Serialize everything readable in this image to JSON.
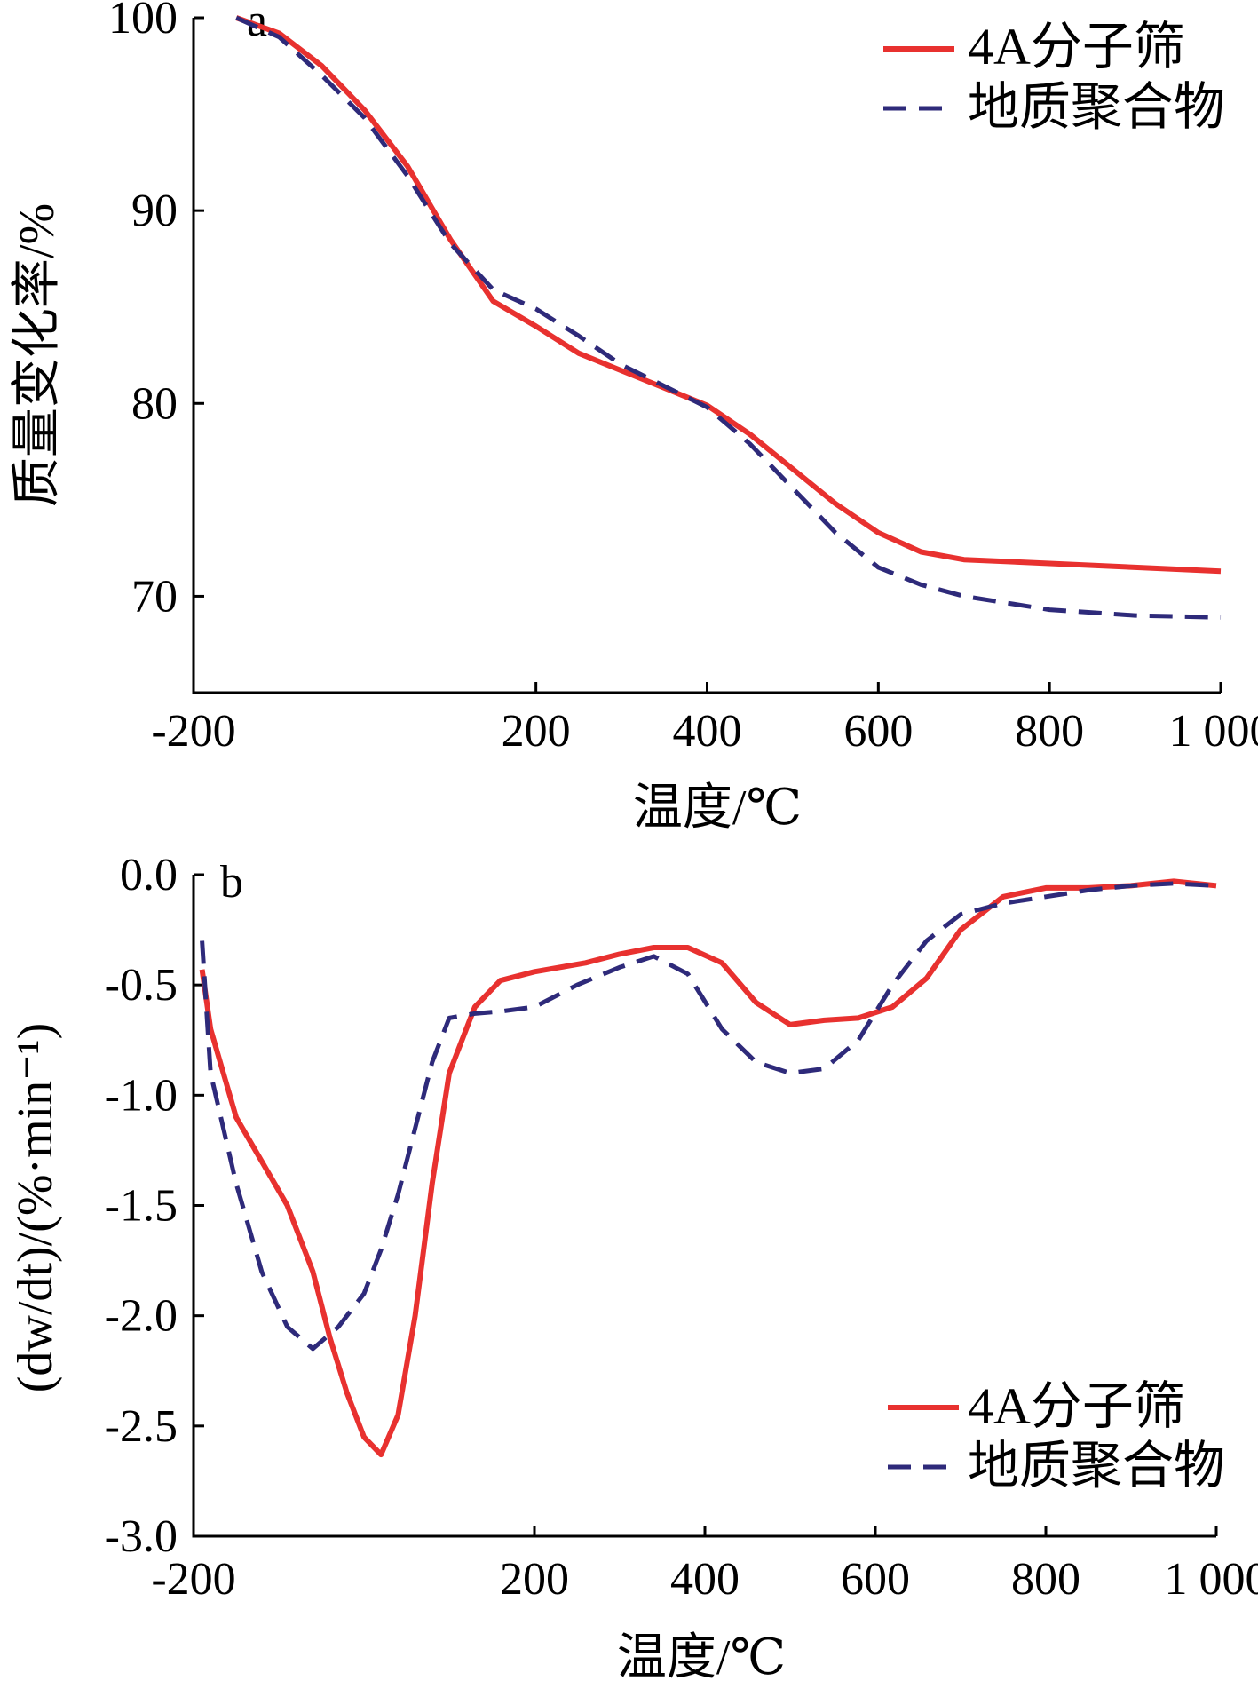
{
  "colors": {
    "molecular_sieve": "#e8312f",
    "geopolymer": "#2e2a7a"
  },
  "chart_data": [
    {
      "type": "line",
      "panel": "a",
      "xlabel": "温度/℃",
      "ylabel": "质量变化率/%",
      "xlim": [
        -200,
        1000
      ],
      "ylim": [
        65,
        100
      ],
      "xticks": [
        "-200",
        "200",
        "400",
        "600",
        "800",
        "1 000"
      ],
      "xtick_values": [
        -200,
        200,
        400,
        600,
        800,
        1000
      ],
      "yticks": [
        "70",
        "80",
        "90",
        "100"
      ],
      "ytick_values": [
        70,
        80,
        90,
        100
      ],
      "legend": {
        "placement": "top-right"
      },
      "series": [
        {
          "name": "4A分子筛",
          "style": "solid",
          "x": [
            -150,
            -100,
            -50,
            0,
            50,
            100,
            150,
            200,
            250,
            300,
            350,
            400,
            450,
            500,
            550,
            600,
            650,
            700,
            800,
            900,
            1000
          ],
          "y": [
            100,
            99.2,
            97.5,
            95.2,
            92.3,
            88.5,
            85.3,
            84.0,
            82.6,
            81.7,
            80.8,
            79.9,
            78.4,
            76.6,
            74.8,
            73.3,
            72.3,
            71.9,
            71.7,
            71.5,
            71.3
          ]
        },
        {
          "name": "地质聚合物",
          "style": "dashed",
          "x": [
            -150,
            -100,
            -50,
            0,
            50,
            100,
            150,
            200,
            250,
            300,
            350,
            400,
            450,
            500,
            550,
            600,
            650,
            700,
            800,
            900,
            1000
          ],
          "y": [
            100,
            99.0,
            97.0,
            94.8,
            91.8,
            88.3,
            85.9,
            84.9,
            83.5,
            82.0,
            80.9,
            79.8,
            77.9,
            75.6,
            73.3,
            71.5,
            70.6,
            70.0,
            69.3,
            69.0,
            68.9
          ]
        }
      ]
    },
    {
      "type": "line",
      "panel": "b",
      "xlabel": "温度/℃",
      "ylabel": "(dw/dt)/(%·min⁻¹)",
      "xlim": [
        -200,
        1000
      ],
      "ylim": [
        -3.0,
        0.0
      ],
      "xticks": [
        "-200",
        "200",
        "400",
        "600",
        "800",
        "1 000"
      ],
      "xtick_values": [
        -200,
        200,
        400,
        600,
        800,
        1000
      ],
      "yticks": [
        "0.0",
        "-0.5",
        "-1.0",
        "-1.5",
        "-2.0",
        "-2.5",
        "-3.0"
      ],
      "ytick_values": [
        0.0,
        -0.5,
        -1.0,
        -1.5,
        -2.0,
        -2.5,
        -3.0
      ],
      "legend": {
        "placement": "bottom-right"
      },
      "series": [
        {
          "name": "4A分子筛",
          "style": "solid",
          "x": [
            -190,
            -180,
            -150,
            -120,
            -90,
            -60,
            -40,
            -20,
            0,
            20,
            40,
            60,
            80,
            100,
            130,
            160,
            200,
            230,
            260,
            300,
            340,
            380,
            420,
            460,
            500,
            540,
            580,
            620,
            660,
            700,
            750,
            800,
            850,
            900,
            950,
            1000
          ],
          "y": [
            -0.43,
            -0.7,
            -1.1,
            -1.3,
            -1.5,
            -1.8,
            -2.1,
            -2.35,
            -2.55,
            -2.63,
            -2.45,
            -2.0,
            -1.4,
            -0.9,
            -0.6,
            -0.48,
            -0.44,
            -0.42,
            -0.4,
            -0.36,
            -0.33,
            -0.33,
            -0.4,
            -0.58,
            -0.68,
            -0.66,
            -0.65,
            -0.6,
            -0.47,
            -0.25,
            -0.1,
            -0.06,
            -0.06,
            -0.05,
            -0.03,
            -0.05
          ]
        },
        {
          "name": "地质聚合物",
          "style": "dashed",
          "x": [
            -190,
            -180,
            -150,
            -120,
            -90,
            -60,
            -30,
            0,
            20,
            40,
            60,
            80,
            100,
            130,
            160,
            200,
            250,
            300,
            340,
            380,
            420,
            460,
            500,
            540,
            580,
            620,
            660,
            700,
            750,
            800,
            850,
            900,
            950,
            1000
          ],
          "y": [
            -0.3,
            -0.9,
            -1.4,
            -1.8,
            -2.05,
            -2.15,
            -2.05,
            -1.9,
            -1.7,
            -1.45,
            -1.15,
            -0.85,
            -0.65,
            -0.63,
            -0.62,
            -0.6,
            -0.5,
            -0.42,
            -0.37,
            -0.45,
            -0.7,
            -0.85,
            -0.9,
            -0.88,
            -0.75,
            -0.5,
            -0.3,
            -0.18,
            -0.13,
            -0.1,
            -0.07,
            -0.05,
            -0.04,
            -0.05
          ]
        }
      ]
    }
  ]
}
